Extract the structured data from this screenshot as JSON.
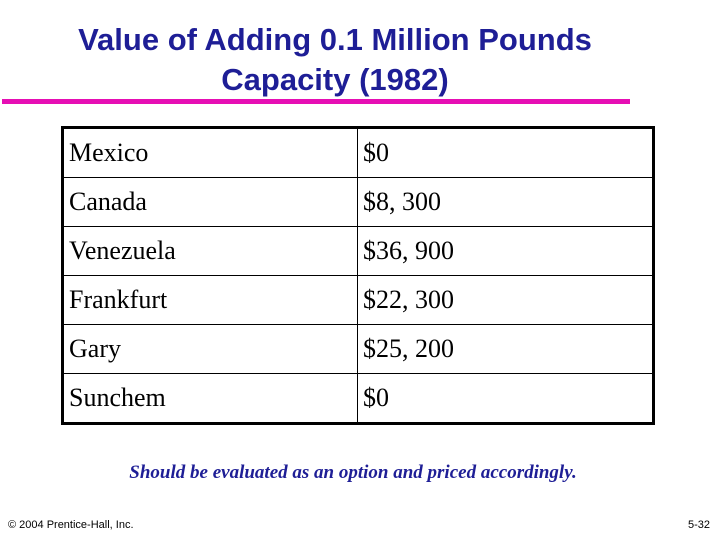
{
  "slide": {
    "title_line1": "Value of Adding 0.1 Million Pounds",
    "title_line2": "Capacity (1982)",
    "caption": "Should be evaluated as an option and priced accordingly.",
    "footer_left": "© 2004 Prentice-Hall, Inc.",
    "footer_right": "5-32"
  },
  "table": {
    "rows": [
      [
        "Mexico",
        "$0"
      ],
      [
        "Canada",
        "$8, 300"
      ],
      [
        "Venezuela",
        "$36, 900"
      ],
      [
        "Frankfurt",
        "$22, 300"
      ],
      [
        "Gary",
        "$25, 200"
      ],
      [
        "Sunchem",
        "$0"
      ]
    ]
  },
  "colors": {
    "title": "#1e1e96",
    "rule": "#e60eb4",
    "caption": "#1e1e96"
  }
}
